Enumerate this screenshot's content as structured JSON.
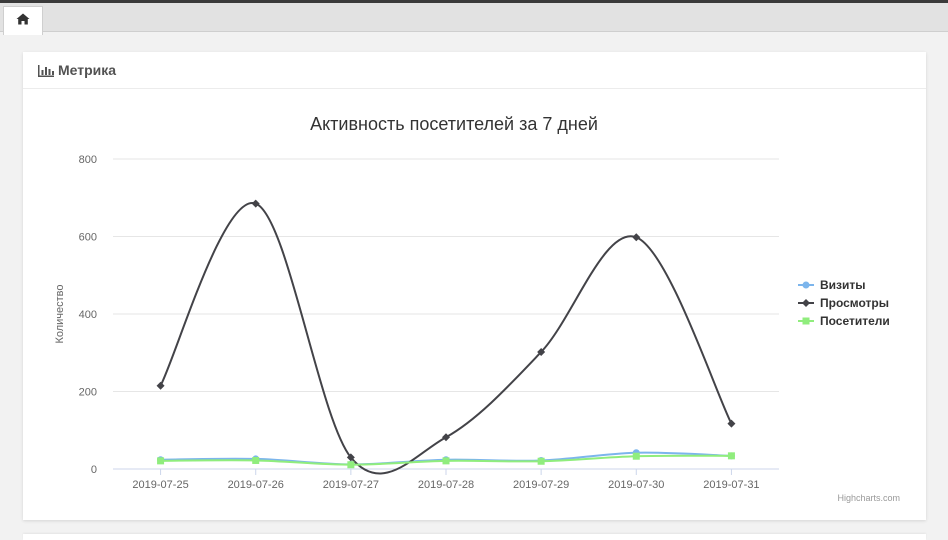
{
  "tabs": {
    "home_icon": "home-icon"
  },
  "card": {
    "title": "Метрика",
    "icon": "bar-chart-icon"
  },
  "chart_data": {
    "type": "line",
    "title": "Активность посетителей за 7 дней",
    "xlabel": "",
    "ylabel": "Количество",
    "categories": [
      "2019-07-25",
      "2019-07-26",
      "2019-07-27",
      "2019-07-28",
      "2019-07-29",
      "2019-07-30",
      "2019-07-31"
    ],
    "ylim": [
      0,
      800
    ],
    "yticks": [
      0,
      200,
      400,
      600,
      800
    ],
    "grid": true,
    "smooth": true,
    "legend_position": "right",
    "series": [
      {
        "name": "Визиты",
        "color": "#7cb5ec",
        "marker": "circle",
        "values": [
          24,
          26,
          12,
          24,
          22,
          42,
          34
        ]
      },
      {
        "name": "Просмотры",
        "color": "#434348",
        "marker": "diamond",
        "values": [
          215,
          685,
          30,
          82,
          302,
          598,
          117
        ]
      },
      {
        "name": "Посетители",
        "color": "#90ed7d",
        "marker": "square",
        "values": [
          21,
          22,
          11,
          21,
          20,
          33,
          34
        ]
      }
    ],
    "credits": "Highcharts.com"
  }
}
